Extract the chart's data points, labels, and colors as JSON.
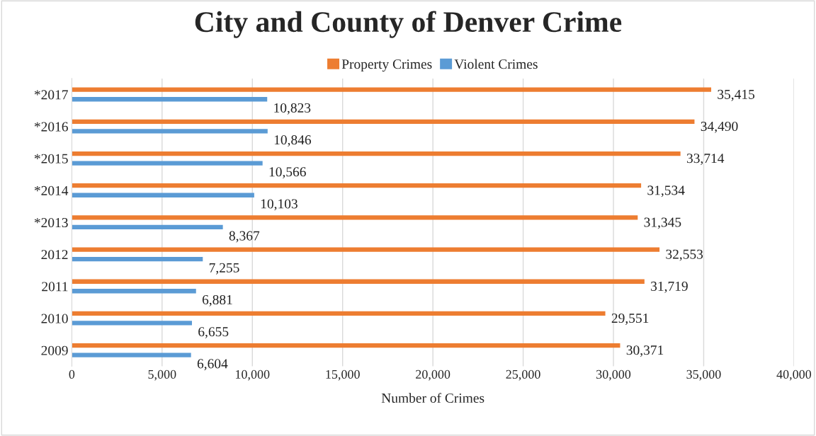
{
  "chart_data": {
    "type": "bar",
    "orientation": "horizontal",
    "title": "City and County of Denver Crime",
    "xlabel": "Number of Crimes",
    "categories": [
      "*2017",
      "*2016",
      "*2015",
      "*2014",
      "*2013",
      "2012",
      "2011",
      "2010",
      "2009"
    ],
    "series": [
      {
        "name": "Property Crimes",
        "color": "#ed7d31",
        "values": [
          35415,
          34490,
          33714,
          31534,
          31345,
          32553,
          31719,
          29551,
          30371
        ],
        "value_labels": [
          "35,415",
          "34,490",
          "33,714",
          "31,534",
          "31,345",
          "32,553",
          "31,719",
          "29,551",
          "30,371"
        ]
      },
      {
        "name": "Violent Crimes",
        "color": "#5b9bd5",
        "values": [
          10823,
          10846,
          10566,
          10103,
          8367,
          7255,
          6881,
          6655,
          6604
        ],
        "value_labels": [
          "10,823",
          "10,846",
          "10,566",
          "10,103",
          "8,367",
          "7,255",
          "6,881",
          "6,655",
          "6,604"
        ]
      }
    ],
    "xlim": [
      0,
      40000
    ],
    "xticks": [
      0,
      {
        "value": 5000,
        "label": "5,000"
      },
      {
        "value": 10000,
        "label": "10,000"
      },
      {
        "value": 15000,
        "label": "15,000"
      },
      {
        "value": 20000,
        "label": "20,000"
      },
      {
        "value": 25000,
        "label": "25,000"
      },
      {
        "value": 30000,
        "label": "30,000"
      },
      {
        "value": 35000,
        "label": "35,000"
      },
      {
        "value": 40000,
        "label": "40,000"
      }
    ],
    "grid": "x",
    "legend": "top"
  }
}
